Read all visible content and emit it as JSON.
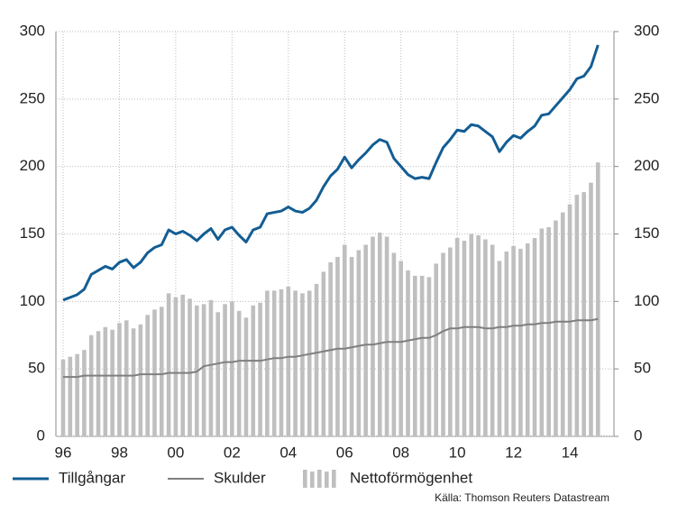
{
  "chart_data": {
    "type": "bar-line",
    "categories": [
      "96",
      null,
      null,
      null,
      null,
      null,
      null,
      null,
      "98",
      null,
      null,
      null,
      null,
      null,
      null,
      null,
      "00",
      null,
      null,
      null,
      null,
      null,
      null,
      null,
      "02",
      null,
      null,
      null,
      null,
      null,
      null,
      null,
      "04",
      null,
      null,
      null,
      null,
      null,
      null,
      null,
      "06",
      null,
      null,
      null,
      null,
      null,
      null,
      null,
      "08",
      null,
      null,
      null,
      null,
      null,
      null,
      null,
      "10",
      null,
      null,
      null,
      null,
      null,
      null,
      null,
      "12",
      null,
      null,
      null,
      null,
      null,
      null,
      null,
      "14",
      null,
      null,
      null,
      null
    ],
    "series": [
      {
        "name": "Tillgångar",
        "type": "line",
        "color": "#135d94",
        "values": [
          101,
          103,
          105,
          109,
          120,
          123,
          126,
          124,
          129,
          131,
          125,
          129,
          136,
          140,
          142,
          153,
          150,
          152,
          149,
          145,
          150,
          154,
          146,
          153,
          155,
          149,
          144,
          153,
          155,
          165,
          166,
          167,
          170,
          167,
          166,
          169,
          175,
          185,
          193,
          198,
          207,
          199,
          205,
          210,
          216,
          220,
          218,
          206,
          200,
          194,
          191,
          192,
          191,
          203,
          214,
          220,
          227,
          226,
          231,
          230,
          226,
          222,
          211,
          218,
          223,
          221,
          226,
          230,
          238,
          239,
          245,
          251,
          257,
          265,
          267,
          274,
          290
        ]
      },
      {
        "name": "Skulder",
        "type": "line",
        "color": "#7f7f7f",
        "values": [
          44,
          44,
          44,
          45,
          45,
          45,
          45,
          45,
          45,
          45,
          45,
          46,
          46,
          46,
          46,
          47,
          47,
          47,
          47,
          48,
          52,
          53,
          54,
          55,
          55,
          56,
          56,
          56,
          56,
          57,
          58,
          58,
          59,
          59,
          60,
          61,
          62,
          63,
          64,
          65,
          65,
          66,
          67,
          68,
          68,
          69,
          70,
          70,
          70,
          71,
          72,
          73,
          73,
          75,
          78,
          80,
          80,
          81,
          81,
          81,
          80,
          80,
          81,
          81,
          82,
          82,
          83,
          83,
          84,
          84,
          85,
          85,
          85,
          86,
          86,
          86,
          87
        ]
      },
      {
        "name": "Nettoförmögenhet",
        "type": "bar",
        "color": "#bfbfbf",
        "values": [
          57,
          59,
          61,
          64,
          75,
          78,
          81,
          79,
          84,
          86,
          80,
          83,
          90,
          94,
          96,
          106,
          103,
          105,
          102,
          97,
          98,
          101,
          92,
          98,
          100,
          93,
          88,
          97,
          99,
          108,
          108,
          109,
          111,
          108,
          106,
          108,
          113,
          122,
          129,
          133,
          142,
          133,
          138,
          142,
          148,
          151,
          148,
          136,
          130,
          123,
          119,
          119,
          118,
          128,
          136,
          140,
          147,
          145,
          150,
          149,
          146,
          142,
          130,
          137,
          141,
          139,
          143,
          147,
          154,
          155,
          160,
          166,
          172,
          179,
          181,
          188,
          203
        ]
      }
    ],
    "ylim": [
      0,
      300
    ],
    "yticks": [
      0,
      50,
      100,
      150,
      200,
      250,
      300
    ],
    "y2lim": [
      0,
      300
    ],
    "y2ticks": [
      0,
      50,
      100,
      150,
      200,
      250,
      300
    ],
    "grid": true,
    "source": "Källa: Thomson Reuters Datastream"
  }
}
